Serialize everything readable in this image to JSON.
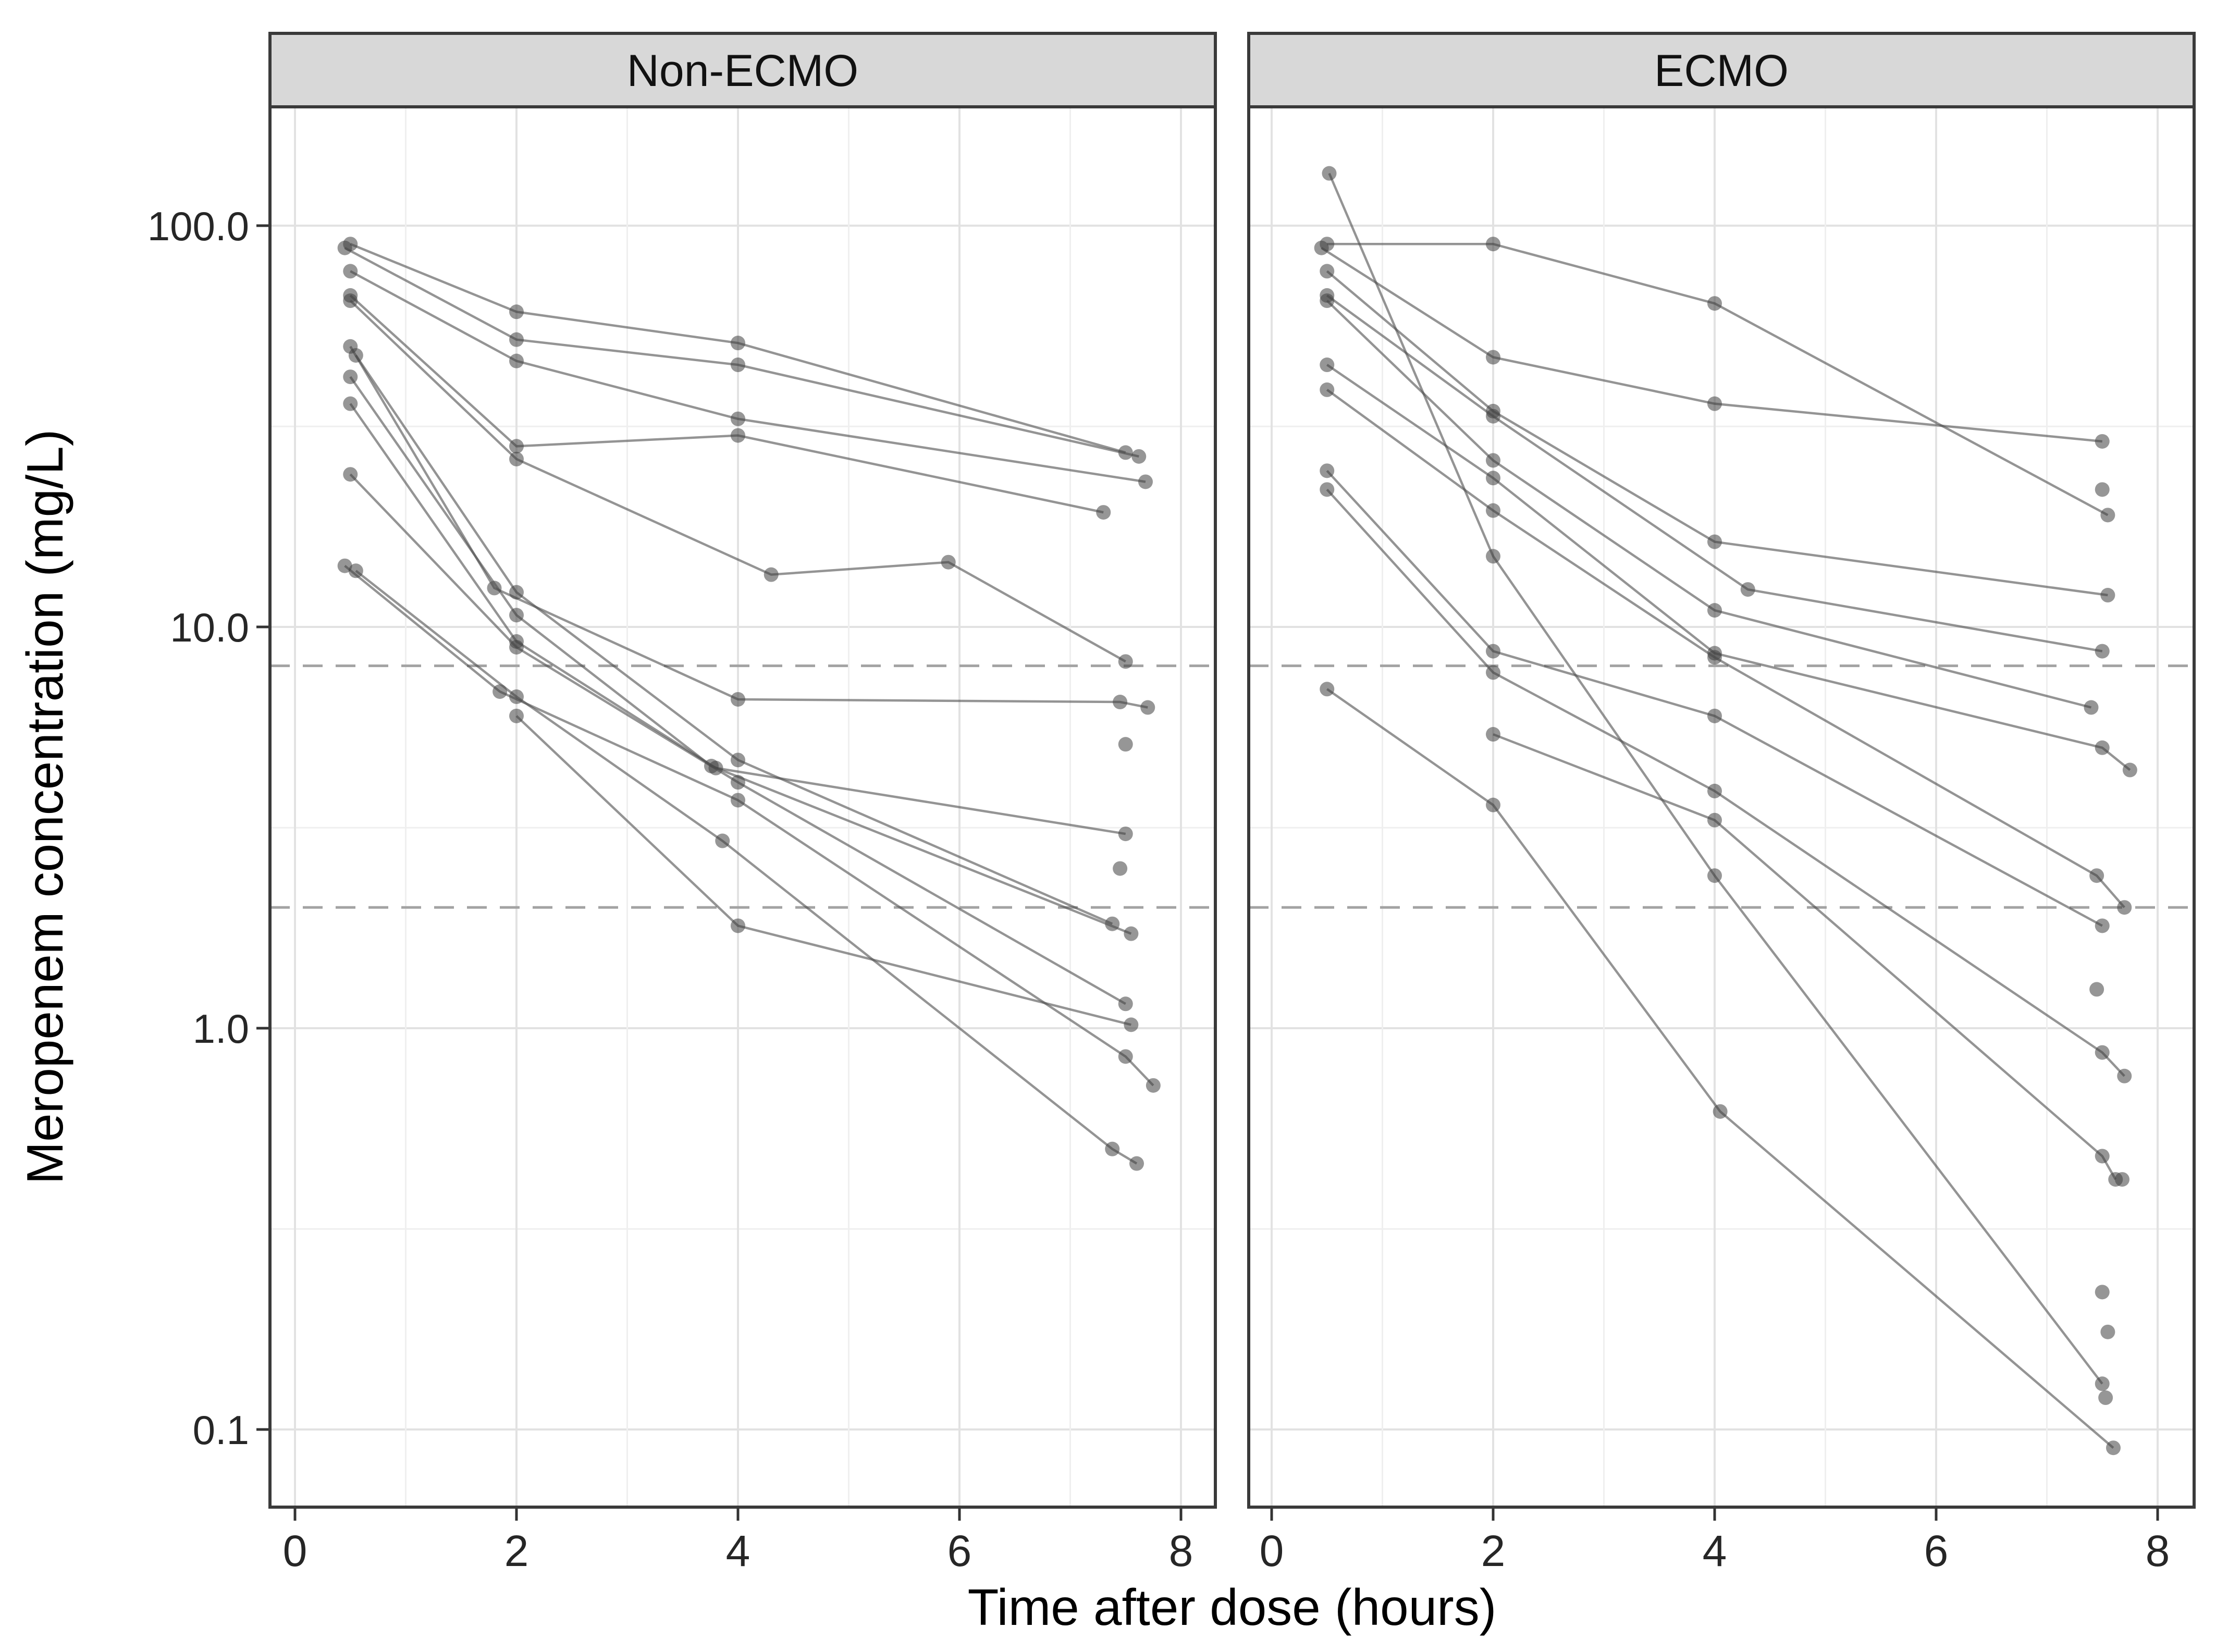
{
  "chart_data": {
    "type": "line",
    "description": "Individual patient meropenem concentration-time profiles on a log10 y scale, faceted by ECMO status",
    "y_axis": {
      "title": "Meropenem concentration (mg/L)",
      "scale": "log10",
      "tick_values": [
        100,
        10,
        1,
        0.1
      ],
      "tick_labels": [
        "100.0",
        "10.0",
        "1.0",
        "0.1"
      ],
      "minor_tick_values": [
        31.6,
        3.16,
        0.316
      ]
    },
    "x_axis": {
      "title": "Time after dose (hours)",
      "tick_values": [
        0,
        2,
        4,
        6,
        8
      ],
      "tick_labels": [
        "0",
        "2",
        "4",
        "6",
        "8"
      ],
      "minor_tick_values": [
        1,
        3,
        5,
        7
      ],
      "range": [
        0,
        8.6
      ]
    },
    "ref_lines_mg_l": [
      8,
      2
    ],
    "grid": true,
    "legend": "none",
    "facets": [
      {
        "label": "Non-ECMO",
        "series": [
          {
            "id": "N1",
            "points": [
              [
                0.5,
                90
              ],
              [
                2,
                61
              ],
              [
                4,
                51
              ],
              [
                7.5,
                27.2
              ]
            ]
          },
          {
            "id": "N2",
            "points": [
              [
                0.45,
                88
              ],
              [
                2,
                52
              ],
              [
                4,
                45
              ],
              [
                7.62,
                26.6
              ]
            ]
          },
          {
            "id": "N3",
            "points": [
              [
                0.5,
                77
              ],
              [
                2,
                46
              ],
              [
                4,
                33
              ],
              [
                7.68,
                23
              ]
            ]
          },
          {
            "id": "N4",
            "points": [
              [
                0.5,
                67
              ],
              [
                2,
                28.2
              ],
              [
                4,
                30
              ],
              [
                7.3,
                19.3
              ]
            ]
          },
          {
            "id": "N5",
            "points": [
              [
                0.5,
                65
              ],
              [
                2,
                26.2
              ],
              [
                4.3,
                13.5
              ],
              [
                5.9,
                14.5
              ],
              [
                7.5,
                8.2
              ]
            ]
          },
          {
            "id": "N6",
            "points": [
              [
                0.5,
                50
              ],
              [
                1.8,
                12.5
              ],
              [
                4,
                6.6
              ],
              [
                7.45,
                6.5
              ],
              [
                7.7,
                6.3
              ]
            ]
          },
          {
            "id": "N7",
            "points": [
              [
                0.55,
                47.5
              ],
              [
                2,
                12.2
              ],
              [
                4,
                4.66
              ],
              [
                7.38,
                1.82
              ]
            ]
          },
          {
            "id": "N8",
            "points": [
              [
                0.5,
                42
              ],
              [
                2,
                10.7
              ],
              [
                3.76,
                4.5
              ],
              [
                7.55,
                1.72
              ]
            ]
          },
          {
            "id": "N9",
            "points": [
              [
                0.5,
                36
              ],
              [
                2,
                9.2
              ],
              [
                3.8,
                4.45
              ],
              [
                7.5,
                3.05
              ]
            ]
          },
          {
            "id": "N10",
            "points": [
              [
                0.5,
                24
              ],
              [
                2,
                8.9
              ],
              [
                4,
                4.1
              ],
              [
                7.5,
                1.15
              ]
            ]
          },
          {
            "id": "N11",
            "points": [
              [
                0.45,
                14.2
              ],
              [
                1.85,
                6.9
              ],
              [
                4,
                3.7
              ],
              [
                7.5,
                0.85
              ],
              [
                7.75,
                0.72
              ]
            ]
          },
          {
            "id": "N12",
            "points": [
              [
                0.55,
                13.8
              ],
              [
                2,
                6.7
              ],
              [
                3.86,
                2.93
              ],
              [
                7.38,
                0.5
              ],
              [
                7.6,
                0.46
              ]
            ]
          },
          {
            "id": "N13",
            "points": [
              [
                2,
                6.0
              ],
              [
                4,
                1.8
              ],
              [
                7.55,
                1.02
              ]
            ]
          }
        ],
        "extra_points": [
          [
            7.5,
            5.1
          ],
          [
            7.45,
            2.5
          ]
        ]
      },
      {
        "label": "ECMO",
        "series": [
          {
            "id": "E1",
            "points": [
              [
                0.52,
                135
              ],
              [
                2,
                15
              ],
              [
                4,
                2.4
              ],
              [
                7.5,
                0.13
              ]
            ]
          },
          {
            "id": "E2",
            "points": [
              [
                0.5,
                90
              ],
              [
                2,
                90
              ],
              [
                4,
                64
              ],
              [
                7.55,
                19
              ]
            ]
          },
          {
            "id": "E3",
            "points": [
              [
                0.45,
                88
              ],
              [
                2,
                47
              ],
              [
                4,
                36
              ],
              [
                7.5,
                29
              ]
            ]
          },
          {
            "id": "E4",
            "points": [
              [
                0.5,
                77
              ],
              [
                2,
                34.5
              ],
              [
                4,
                16.3
              ],
              [
                7.55,
                12
              ]
            ]
          },
          {
            "id": "E5",
            "points": [
              [
                0.5,
                67
              ],
              [
                2,
                33.5
              ],
              [
                4.3,
                12.4
              ],
              [
                7.5,
                8.7
              ]
            ]
          },
          {
            "id": "E6",
            "points": [
              [
                0.5,
                65
              ],
              [
                2,
                26
              ],
              [
                4,
                11
              ],
              [
                7.4,
                6.3
              ]
            ]
          },
          {
            "id": "E7",
            "points": [
              [
                0.5,
                45
              ],
              [
                2,
                23.5
              ],
              [
                4,
                8.6
              ],
              [
                7.5,
                5.0
              ],
              [
                7.75,
                4.4
              ]
            ]
          },
          {
            "id": "E8",
            "points": [
              [
                0.5,
                39
              ],
              [
                2,
                19.5
              ],
              [
                4,
                8.4
              ],
              [
                7.45,
                2.4
              ],
              [
                7.7,
                2.0
              ]
            ]
          },
          {
            "id": "E9",
            "points": [
              [
                0.5,
                24.5
              ],
              [
                2,
                8.7
              ],
              [
                4,
                6.0
              ],
              [
                7.5,
                1.8
              ]
            ]
          },
          {
            "id": "E10",
            "points": [
              [
                0.5,
                22
              ],
              [
                2,
                7.7
              ],
              [
                4,
                3.9
              ],
              [
                7.5,
                0.87
              ],
              [
                7.7,
                0.76
              ]
            ]
          },
          {
            "id": "E11",
            "points": [
              [
                0.5,
                7.0
              ],
              [
                2,
                3.6
              ],
              [
                4.05,
                0.62
              ],
              [
                7.6,
                0.09
              ]
            ]
          },
          {
            "id": "E12",
            "points": [
              [
                2,
                5.4
              ],
              [
                4,
                3.3
              ],
              [
                7.5,
                0.48
              ],
              [
                7.62,
                0.42
              ]
            ]
          }
        ],
        "extra_points": [
          [
            7.5,
            22
          ],
          [
            7.45,
            1.25
          ],
          [
            7.68,
            0.42
          ],
          [
            7.5,
            0.22
          ],
          [
            7.55,
            0.175
          ],
          [
            7.53,
            0.12
          ]
        ]
      }
    ],
    "colors": {
      "point": "#404040",
      "line": "#4d4d4d",
      "ref_line": "#a3a3a3",
      "grid_major": "#e2e2e2",
      "grid_minor": "#efefef",
      "panel_border": "#3a3a3a",
      "strip_fill": "#d8d8d8",
      "background": "#ffffff",
      "text": "#262626"
    }
  }
}
